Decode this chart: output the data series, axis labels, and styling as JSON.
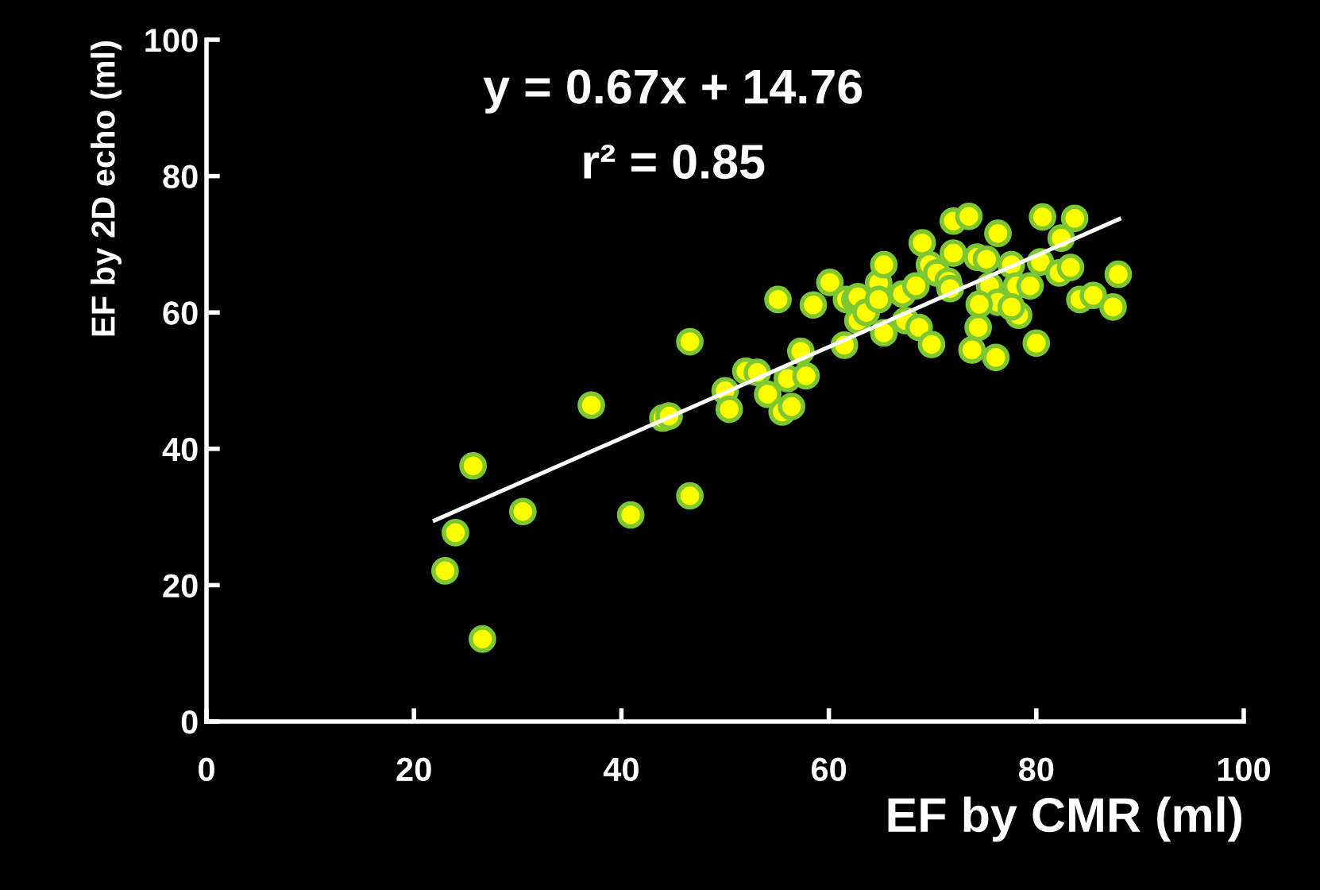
{
  "chart_data": {
    "type": "scatter",
    "xlabel": "EF by CMR (ml)",
    "ylabel": "EF by 2D echo (ml)",
    "annotations": [
      "y = 0.67x + 14.76",
      "r² = 0.85"
    ],
    "xlim": [
      0,
      100
    ],
    "ylim": [
      0,
      100
    ],
    "xticks": [
      0,
      20,
      40,
      60,
      80,
      100
    ],
    "yticks": [
      0,
      20,
      40,
      60,
      80,
      100
    ],
    "grid": false,
    "series": [
      {
        "marker": "circle",
        "color": "#ffff00",
        "x": [
          23.0,
          24.0,
          25.7,
          26.6,
          30.5,
          37.1,
          40.9,
          44.0,
          44.6,
          46.6,
          46.6,
          50.0,
          50.4,
          52.0,
          53.1,
          54.1,
          55.1,
          55.5,
          56.4,
          56.0,
          57.3,
          57.8,
          58.5,
          60.1,
          61.5,
          61.7,
          62.5,
          62.8,
          62.8,
          63.6,
          64.8,
          64.8,
          65.3,
          65.3,
          67.1,
          67.4,
          68.4,
          68.7,
          69.0,
          69.9,
          69.7,
          70.4,
          71.5,
          71.7,
          72.0,
          73.5,
          72.0,
          74.3,
          73.8,
          74.4,
          75.2,
          76.3,
          76.1,
          75.5,
          76.3,
          77.6,
          78.1,
          78.3,
          79.4,
          80.0,
          80.6,
          80.4,
          82.2,
          82.4,
          83.3,
          83.7,
          84.2,
          85.5,
          87.4,
          87.9,
          77.6,
          74.5
        ],
        "values": [
          22.1,
          27.7,
          37.5,
          12.1,
          30.8,
          46.4,
          30.3,
          44.5,
          44.8,
          55.7,
          33.1,
          48.5,
          45.8,
          51.4,
          51.2,
          48.0,
          61.9,
          45.4,
          46.2,
          50.3,
          54.3,
          50.7,
          61.1,
          64.4,
          55.2,
          61.9,
          61.9,
          58.8,
          62.3,
          60.0,
          64.3,
          61.9,
          67.0,
          57.0,
          62.7,
          58.8,
          63.9,
          57.8,
          70.2,
          55.3,
          67.0,
          65.8,
          64.6,
          63.5,
          73.4,
          74.1,
          68.7,
          68.1,
          54.5,
          57.8,
          67.8,
          71.6,
          53.4,
          63.9,
          61.5,
          67.0,
          63.9,
          59.6,
          63.9,
          55.5,
          74.0,
          67.4,
          65.8,
          70.9,
          66.6,
          73.8,
          61.9,
          62.5,
          60.8,
          65.6,
          60.8,
          61.2
        ]
      },
      {
        "type": "line",
        "color": "#ffffff",
        "x": [
          22,
          88
        ],
        "values": [
          29.5,
          73.7
        ]
      }
    ]
  }
}
